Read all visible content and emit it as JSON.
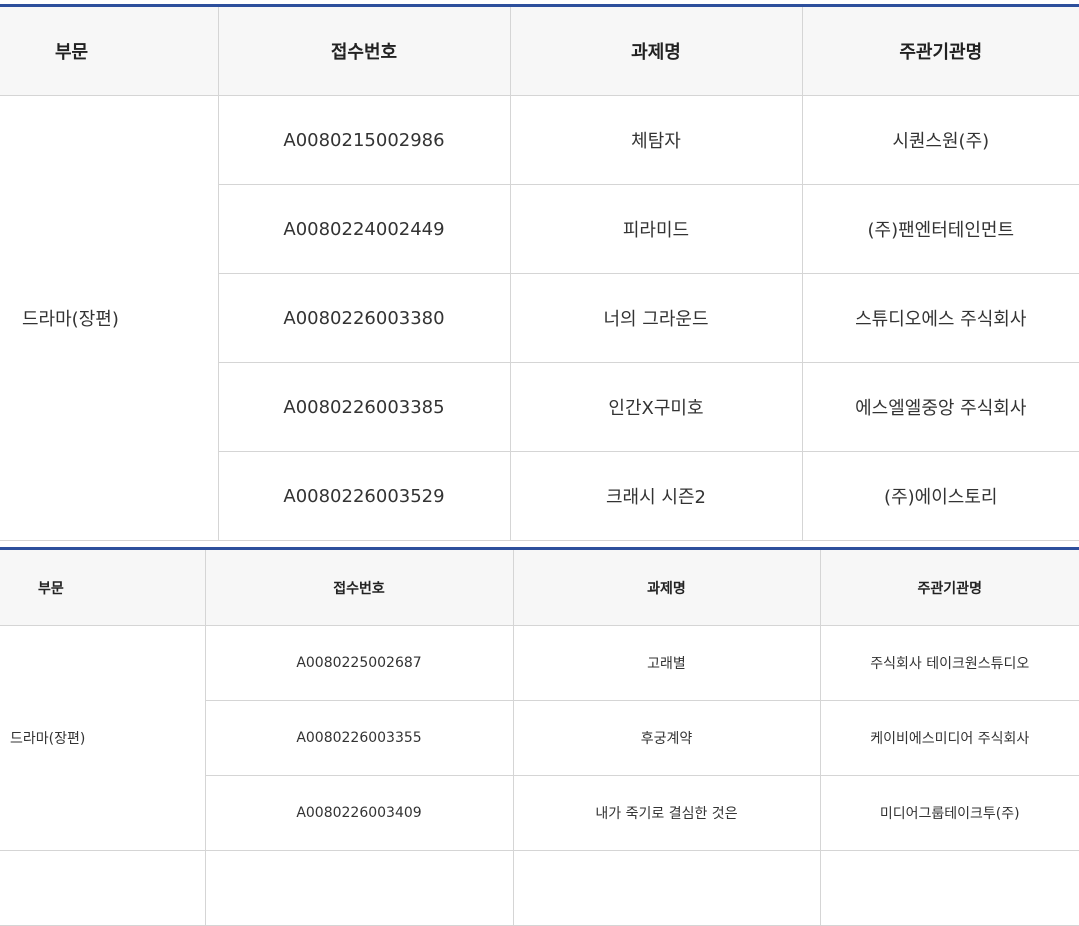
{
  "table1": {
    "headers": [
      "부문",
      "접수번호",
      "과제명",
      "주관기관명"
    ],
    "category": "드라마(장편)",
    "rows": [
      {
        "id": "A0080215002986",
        "title": "체탐자",
        "org": "시퀀스원(주)"
      },
      {
        "id": "A0080224002449",
        "title": "피라미드",
        "org": "(주)팬엔터테인먼트"
      },
      {
        "id": "A0080226003380",
        "title": "너의 그라운드",
        "org": "스튜디오에스 주식회사"
      },
      {
        "id": "A0080226003385",
        "title": "인간X구미호",
        "org": "에스엘엘중앙 주식회사"
      },
      {
        "id": "A0080226003529",
        "title": "크래시 시즌2",
        "org": "(주)에이스토리"
      }
    ]
  },
  "table2": {
    "headers": [
      "부문",
      "접수번호",
      "과제명",
      "주관기관명"
    ],
    "category": "드라마(장편)",
    "rows": [
      {
        "id": "A0080225002687",
        "title": "고래별",
        "org": "주식회사 테이크원스튜디오"
      },
      {
        "id": "A0080226003355",
        "title": "후궁계약",
        "org": "케이비에스미디어 주식회사"
      },
      {
        "id": "A0080226003409",
        "title": "내가 죽기로 결심한 것은",
        "org": "미디어그룹테이크투(주)"
      }
    ]
  },
  "colors": {
    "accent_border": "#2d4f9c",
    "header_bg": "#f7f7f7",
    "grid": "#d5d5d5"
  }
}
